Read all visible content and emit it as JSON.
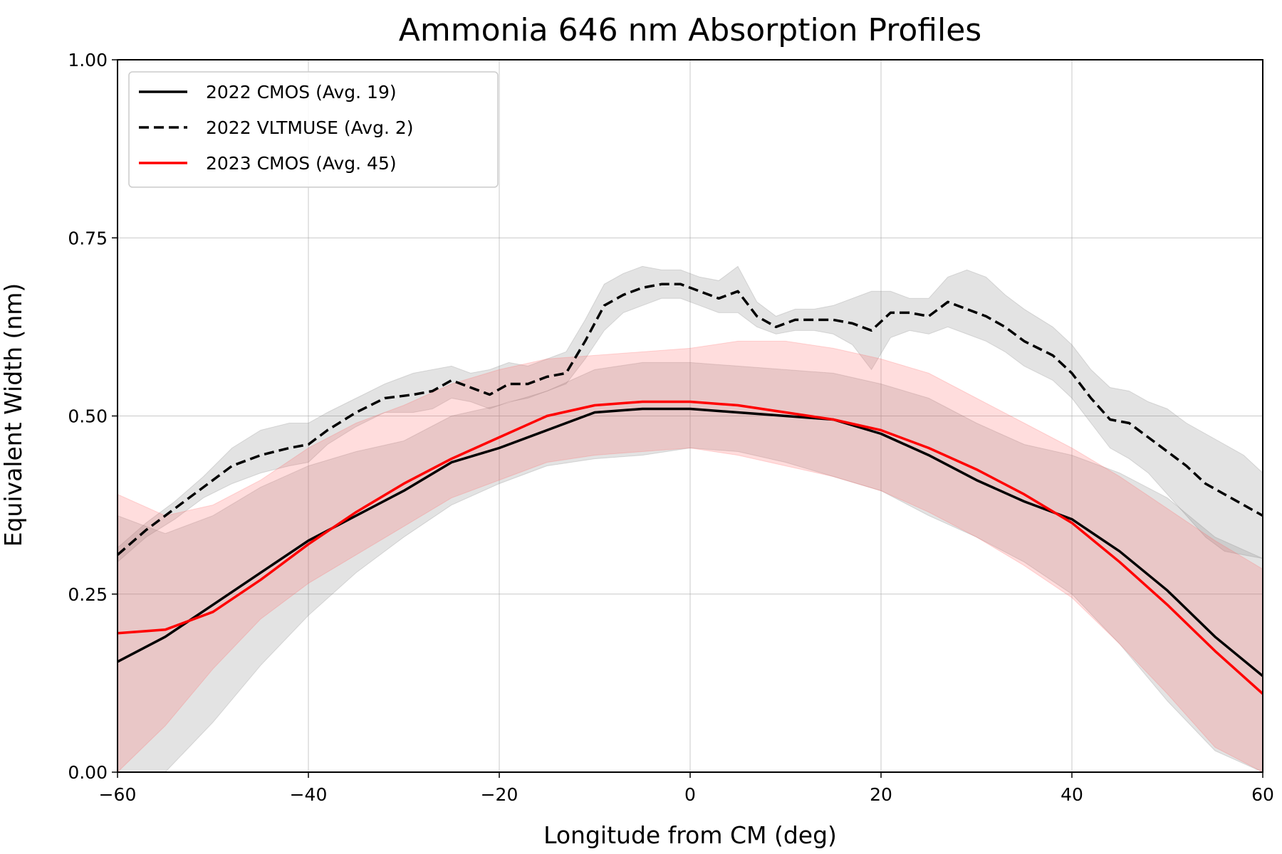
{
  "chart_data": {
    "type": "line",
    "title": "Ammonia 646 nm Absorption Profiles",
    "xlabel": "Longitude from CM (deg)",
    "ylabel": "Equivalent Width (nm)",
    "xlim": [
      -60,
      60
    ],
    "ylim": [
      0,
      1
    ],
    "xticks": [
      -60,
      -40,
      -20,
      0,
      20,
      40,
      60
    ],
    "xtick_labels": [
      "−60",
      "−40",
      "−20",
      "0",
      "20",
      "40",
      "60"
    ],
    "yticks": [
      0,
      0.25,
      0.5,
      0.75,
      1.0
    ],
    "ytick_labels": [
      "0.00",
      "0.25",
      "0.50",
      "0.75",
      "1.00"
    ],
    "grid": true,
    "legend_position": "top-left",
    "series": [
      {
        "name": "2022 CMOS (Avg. 19)",
        "color": "#000000",
        "linestyle": "solid",
        "band_color": "#808080",
        "x": [
          -60,
          -55,
          -50,
          -45,
          -40,
          -35,
          -30,
          -25,
          -20,
          -15,
          -10,
          -5,
          0,
          5,
          10,
          15,
          20,
          25,
          30,
          35,
          40,
          45,
          50,
          55,
          60
        ],
        "y": [
          0.155,
          0.19,
          0.235,
          0.28,
          0.325,
          0.36,
          0.395,
          0.435,
          0.455,
          0.48,
          0.505,
          0.51,
          0.51,
          0.505,
          0.5,
          0.495,
          0.475,
          0.445,
          0.41,
          0.38,
          0.355,
          0.31,
          0.255,
          0.19,
          0.135
        ],
        "y_low": [
          0.0,
          0.0,
          0.07,
          0.15,
          0.22,
          0.28,
          0.33,
          0.375,
          0.405,
          0.43,
          0.44,
          0.445,
          0.455,
          0.45,
          0.435,
          0.415,
          0.395,
          0.36,
          0.33,
          0.295,
          0.25,
          0.18,
          0.1,
          0.03,
          0.0
        ],
        "y_high": [
          0.36,
          0.335,
          0.36,
          0.4,
          0.43,
          0.45,
          0.465,
          0.5,
          0.515,
          0.535,
          0.565,
          0.575,
          0.575,
          0.57,
          0.565,
          0.56,
          0.545,
          0.525,
          0.49,
          0.46,
          0.445,
          0.42,
          0.385,
          0.33,
          0.3
        ]
      },
      {
        "name": "2022 VLTMUSE (Avg. 2)",
        "color": "#000000",
        "linestyle": "dashed",
        "band_color": "#808080",
        "x": [
          -60,
          -57,
          -54,
          -51,
          -48,
          -45,
          -42,
          -40,
          -38,
          -35,
          -32,
          -29,
          -27,
          -25,
          -23,
          -21,
          -19,
          -17,
          -15,
          -13,
          -11,
          -9,
          -7,
          -5,
          -3,
          -1,
          1,
          3,
          5,
          7,
          9,
          11,
          13,
          15,
          17,
          19,
          21,
          23,
          25,
          27,
          29,
          31,
          33,
          35,
          38,
          40,
          42,
          44,
          46,
          48,
          50,
          52,
          54,
          56,
          58,
          60
        ],
        "y": [
          0.305,
          0.34,
          0.37,
          0.4,
          0.43,
          0.445,
          0.455,
          0.46,
          0.48,
          0.505,
          0.525,
          0.53,
          0.535,
          0.55,
          0.54,
          0.53,
          0.545,
          0.545,
          0.555,
          0.56,
          0.605,
          0.655,
          0.67,
          0.68,
          0.685,
          0.685,
          0.675,
          0.665,
          0.675,
          0.64,
          0.625,
          0.635,
          0.635,
          0.635,
          0.63,
          0.62,
          0.645,
          0.645,
          0.64,
          0.66,
          0.65,
          0.64,
          0.625,
          0.605,
          0.585,
          0.56,
          0.525,
          0.495,
          0.49,
          0.47,
          0.45,
          0.43,
          0.405,
          0.39,
          0.375,
          0.36
        ],
        "y_low": [
          0.295,
          0.33,
          0.355,
          0.385,
          0.405,
          0.42,
          0.43,
          0.435,
          0.46,
          0.485,
          0.505,
          0.505,
          0.51,
          0.525,
          0.52,
          0.51,
          0.52,
          0.525,
          0.535,
          0.545,
          0.58,
          0.62,
          0.645,
          0.655,
          0.665,
          0.665,
          0.655,
          0.645,
          0.645,
          0.625,
          0.615,
          0.62,
          0.62,
          0.615,
          0.6,
          0.565,
          0.61,
          0.62,
          0.615,
          0.625,
          0.615,
          0.605,
          0.59,
          0.57,
          0.55,
          0.525,
          0.49,
          0.455,
          0.44,
          0.42,
          0.39,
          0.36,
          0.33,
          0.31,
          0.305,
          0.3
        ],
        "y_high": [
          0.315,
          0.35,
          0.38,
          0.415,
          0.455,
          0.48,
          0.49,
          0.49,
          0.505,
          0.525,
          0.545,
          0.56,
          0.565,
          0.57,
          0.56,
          0.565,
          0.575,
          0.57,
          0.58,
          0.59,
          0.635,
          0.685,
          0.7,
          0.71,
          0.705,
          0.705,
          0.695,
          0.69,
          0.71,
          0.66,
          0.64,
          0.65,
          0.65,
          0.655,
          0.665,
          0.675,
          0.675,
          0.665,
          0.665,
          0.695,
          0.705,
          0.695,
          0.67,
          0.65,
          0.625,
          0.6,
          0.565,
          0.54,
          0.535,
          0.52,
          0.51,
          0.49,
          0.475,
          0.46,
          0.445,
          0.42
        ]
      },
      {
        "name": "2023 CMOS (Avg. 45)",
        "color": "#ff0000",
        "linestyle": "solid",
        "band_color": "#ff6666",
        "x": [
          -60,
          -55,
          -50,
          -45,
          -40,
          -35,
          -30,
          -25,
          -20,
          -15,
          -10,
          -5,
          0,
          5,
          10,
          15,
          20,
          25,
          30,
          35,
          40,
          45,
          50,
          55,
          60
        ],
        "y": [
          0.195,
          0.2,
          0.225,
          0.27,
          0.32,
          0.365,
          0.405,
          0.44,
          0.47,
          0.5,
          0.515,
          0.52,
          0.52,
          0.515,
          0.505,
          0.495,
          0.48,
          0.455,
          0.425,
          0.39,
          0.35,
          0.295,
          0.235,
          0.17,
          0.11
        ],
        "y_low": [
          0.0,
          0.065,
          0.145,
          0.215,
          0.265,
          0.305,
          0.345,
          0.385,
          0.41,
          0.435,
          0.445,
          0.45,
          0.455,
          0.445,
          0.43,
          0.415,
          0.395,
          0.365,
          0.33,
          0.29,
          0.245,
          0.18,
          0.11,
          0.035,
          0.0
        ],
        "y_high": [
          0.39,
          0.36,
          0.375,
          0.41,
          0.455,
          0.49,
          0.515,
          0.545,
          0.565,
          0.58,
          0.585,
          0.59,
          0.595,
          0.605,
          0.605,
          0.595,
          0.58,
          0.56,
          0.525,
          0.49,
          0.455,
          0.415,
          0.37,
          0.325,
          0.285
        ]
      }
    ]
  }
}
